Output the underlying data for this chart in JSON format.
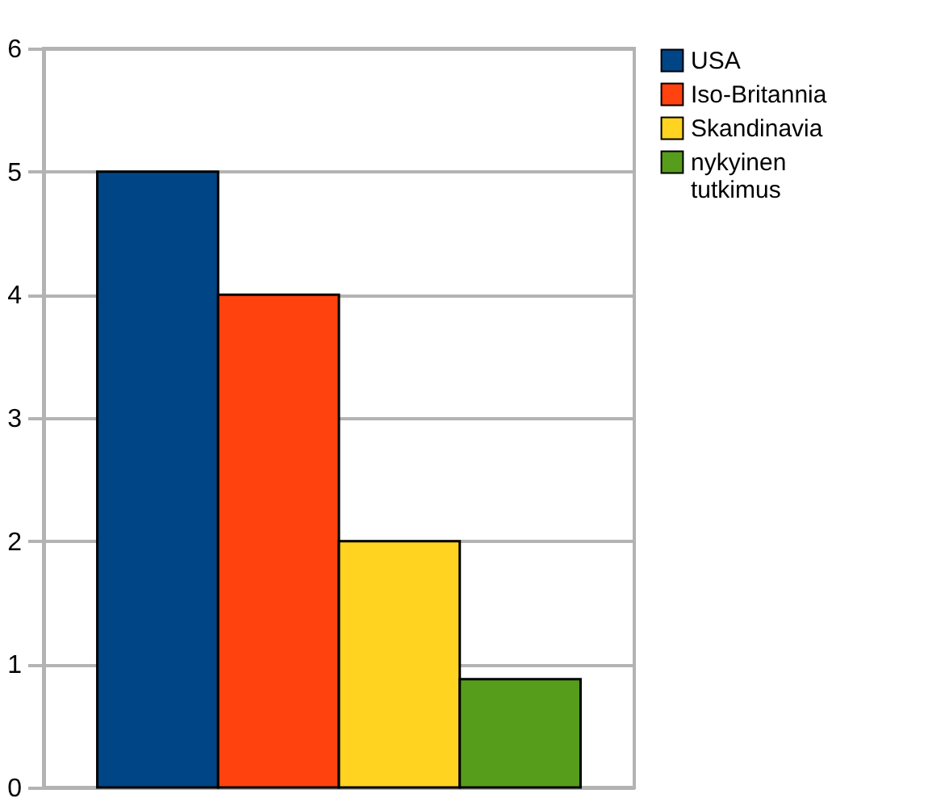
{
  "chart_data": {
    "type": "bar",
    "categories": [
      null
    ],
    "series": [
      {
        "name": "USA",
        "color": "#004586",
        "values": [
          5
        ]
      },
      {
        "name": "Iso-Britannia",
        "color": "#ff420e",
        "values": [
          4
        ]
      },
      {
        "name": "Skandinavia",
        "color": "#ffd320",
        "values": [
          2
        ]
      },
      {
        "name": "nykyinen tutkimus",
        "color": "#579d1c",
        "values": [
          0.88
        ]
      }
    ],
    "ylim": [
      0,
      6
    ],
    "yticks": [
      0,
      1,
      2,
      3,
      4,
      5,
      6
    ],
    "grid": "y",
    "legend": "right",
    "tick_labels": "y"
  }
}
